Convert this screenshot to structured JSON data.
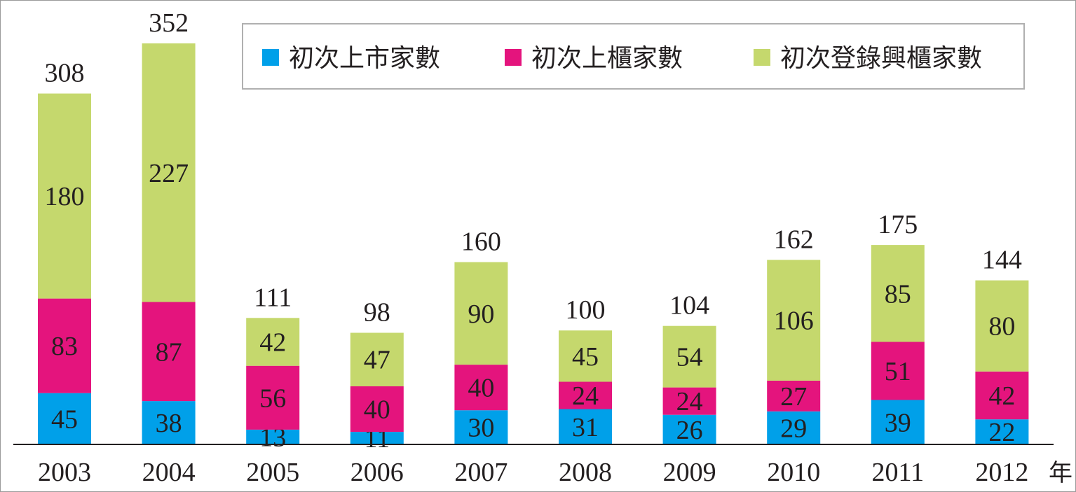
{
  "chart_data": {
    "type": "bar",
    "stacked": true,
    "title": "",
    "xlabel": "",
    "ylabel": "",
    "x_unit": "年",
    "categories": [
      "2003",
      "2004",
      "2005",
      "2006",
      "2007",
      "2008",
      "2009",
      "2010",
      "2011",
      "2012"
    ],
    "series": [
      {
        "name": "初次上市家數",
        "color": "#00a0e9",
        "values": [
          45,
          38,
          13,
          11,
          30,
          31,
          26,
          29,
          39,
          22
        ]
      },
      {
        "name": "初次上櫃家數",
        "color": "#e4147d",
        "values": [
          83,
          87,
          56,
          40,
          40,
          24,
          24,
          27,
          51,
          42
        ]
      },
      {
        "name": "初次登錄興櫃家數",
        "color": "#c5d86d",
        "values": [
          180,
          227,
          42,
          47,
          90,
          45,
          54,
          106,
          85,
          80
        ]
      }
    ],
    "totals": [
      308,
      352,
      111,
      98,
      160,
      100,
      104,
      162,
      175,
      144
    ],
    "ylim": [
      0,
      352
    ],
    "grid": false,
    "legend": "top"
  }
}
